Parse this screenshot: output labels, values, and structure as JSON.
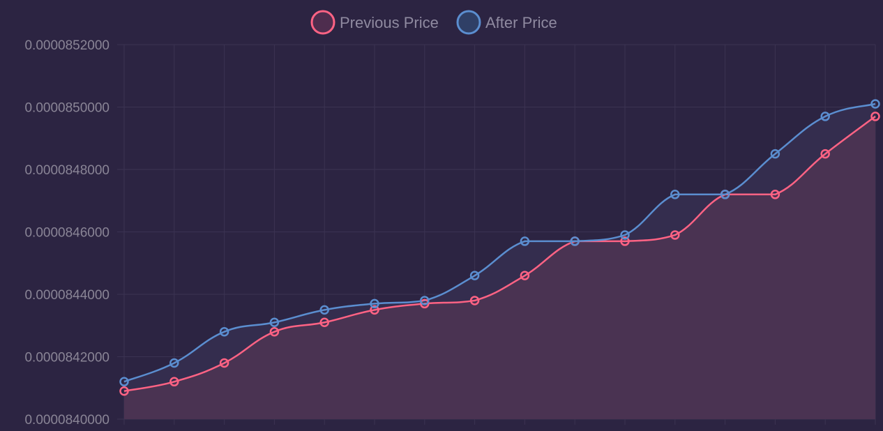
{
  "chart_data": {
    "type": "line",
    "title": "",
    "xlabel": "",
    "ylabel": "",
    "ylim": [
      8.4e-05,
      8.52e-05
    ],
    "y_ticks": [
      "0.0000840000",
      "0.0000842000",
      "0.0000844000",
      "0.0000846000",
      "0.0000848000",
      "0.0000850000",
      "0.0000852000"
    ],
    "x_tick_labels_shown": false,
    "grid": true,
    "legend": "top-center",
    "point_count": 16,
    "series": [
      {
        "name": "Previous Price",
        "color": "#ff6384",
        "fill": "#4a3352",
        "values": [
          8.409e-05,
          8.412e-05,
          8.418e-05,
          8.428e-05,
          8.431e-05,
          8.435e-05,
          8.437e-05,
          8.438e-05,
          8.446e-05,
          8.457e-05,
          8.457e-05,
          8.459e-05,
          8.472e-05,
          8.472e-05,
          8.485e-05,
          8.497e-05
        ]
      },
      {
        "name": "After Price",
        "color": "#5b8ed0",
        "fill": "#342d4e",
        "values": [
          8.412e-05,
          8.418e-05,
          8.428e-05,
          8.431e-05,
          8.435e-05,
          8.437e-05,
          8.438e-05,
          8.446e-05,
          8.457e-05,
          8.457e-05,
          8.459e-05,
          8.472e-05,
          8.472e-05,
          8.485e-05,
          8.497e-05,
          8.501e-05
        ]
      }
    ]
  }
}
